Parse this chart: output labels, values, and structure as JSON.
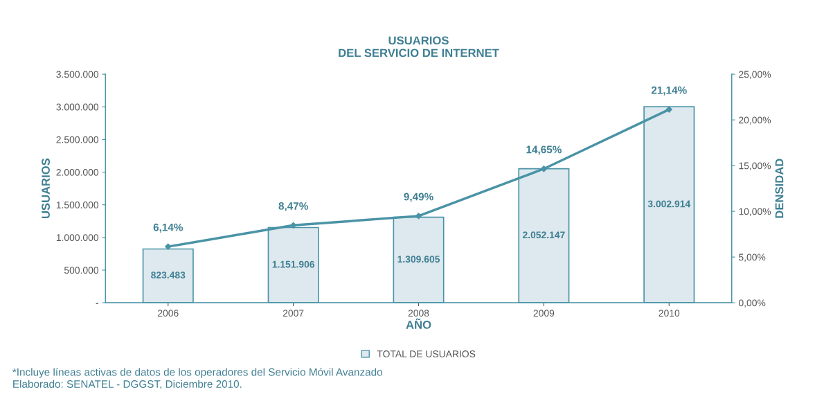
{
  "chart_data": {
    "type": "bar",
    "title": "USUARIOS\nDEL SERVICIO DE INTERNET",
    "xlabel": "AÑO",
    "ylabel": "USUARIOS",
    "y2label": "DENSIDAD",
    "categories": [
      "2006",
      "2007",
      "2008",
      "2009",
      "2010"
    ],
    "series": [
      {
        "name": "TOTAL DE USUARIOS",
        "color": "#dde9ee",
        "values": [
          823483,
          1151906,
          1309605,
          2052147,
          3002914
        ],
        "value_labels": [
          "823.483",
          "1.151.906",
          "1.309.605",
          "2.052.147",
          "3.002.914"
        ]
      },
      {
        "type": "line",
        "axis": "y2",
        "color": "#4a93a6",
        "marker": "diamond",
        "line_style": "solid",
        "values": [
          6.14,
          8.47,
          9.49,
          14.65,
          21.14
        ],
        "value_labels": [
          "6,14%",
          "8,47%",
          "9,49%",
          "14,65%",
          "21,14%"
        ]
      }
    ],
    "ylim": [
      0,
      3500000
    ],
    "yticks": [
      {
        "value": 0,
        "label": "-"
      },
      {
        "value": 500000,
        "label": "500.000"
      },
      {
        "value": 1000000,
        "label": "1.000.000"
      },
      {
        "value": 1500000,
        "label": "1.500.000"
      },
      {
        "value": 2000000,
        "label": "2.000.000"
      },
      {
        "value": 2500000,
        "label": "2.500.000"
      },
      {
        "value": 3000000,
        "label": "3.000.000"
      },
      {
        "value": 3500000,
        "label": "3.500.000"
      }
    ],
    "y2lim": [
      0,
      25
    ],
    "y2ticks": [
      {
        "value": 0,
        "label": "0,00%"
      },
      {
        "value": 5,
        "label": "5,00%"
      },
      {
        "value": 10,
        "label": "10,00%"
      },
      {
        "value": 15,
        "label": "15,00%"
      },
      {
        "value": 20,
        "label": "20,00%"
      },
      {
        "value": 25,
        "label": "25,00%"
      }
    ],
    "grid": false,
    "legend": "bottom",
    "annotations": [
      "*Incluye líneas activas de datos de los operadores del Servicio Móvil Avanzado",
      "Elaborado: SENATEL - DGGST, Diciembre 2010."
    ]
  }
}
